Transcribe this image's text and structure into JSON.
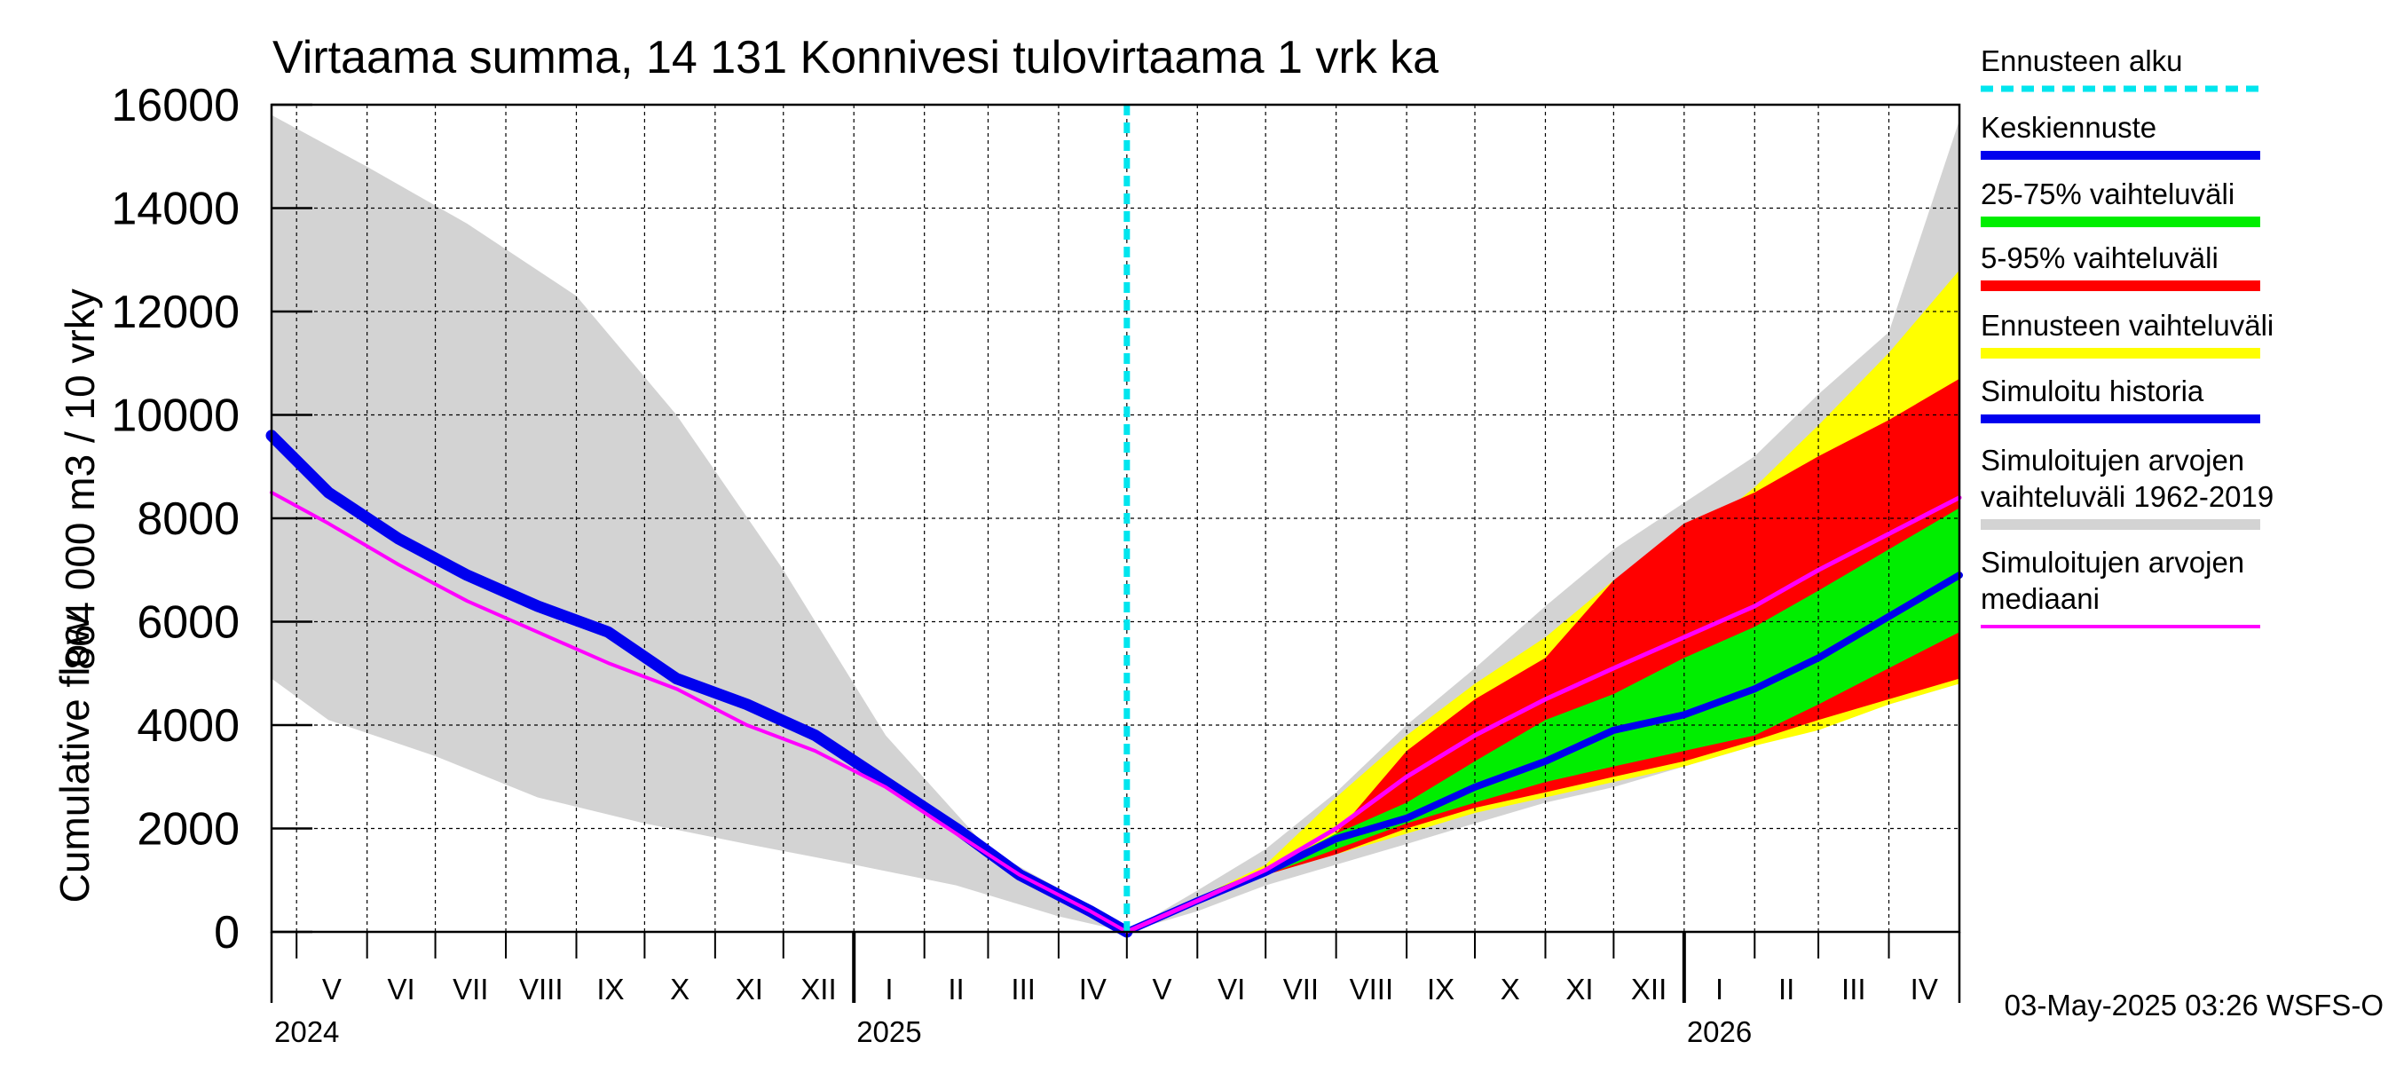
{
  "chart_data": {
    "type": "area",
    "title": "Virtaama summa, 14 131 Konnivesi tulovirtaama 1 vrk ka",
    "ylabel_line1": "864 000 m3 / 10 vrky",
    "ylabel_line2": "Cumulative flow",
    "footer": "03-May-2025 03:26 WSFS-O",
    "ylim": [
      0,
      16000
    ],
    "yticks": [
      0,
      2000,
      4000,
      6000,
      8000,
      10000,
      12000,
      14000,
      16000
    ],
    "xlim": [
      "2024-04-20",
      "2026-05-02"
    ],
    "months": [
      {
        "label": "V",
        "start": "2024-05-01"
      },
      {
        "label": "VI",
        "start": "2024-06-01"
      },
      {
        "label": "VII",
        "start": "2024-07-01"
      },
      {
        "label": "VIII",
        "start": "2024-08-01"
      },
      {
        "label": "IX",
        "start": "2024-09-01"
      },
      {
        "label": "X",
        "start": "2024-10-01"
      },
      {
        "label": "XI",
        "start": "2024-11-01"
      },
      {
        "label": "XII",
        "start": "2024-12-01"
      },
      {
        "label": "I",
        "start": "2025-01-01"
      },
      {
        "label": "II",
        "start": "2025-02-01"
      },
      {
        "label": "III",
        "start": "2025-03-01"
      },
      {
        "label": "IV",
        "start": "2025-04-01"
      },
      {
        "label": "V",
        "start": "2025-05-01"
      },
      {
        "label": "VI",
        "start": "2025-06-01"
      },
      {
        "label": "VII",
        "start": "2025-07-01"
      },
      {
        "label": "VIII",
        "start": "2025-08-01"
      },
      {
        "label": "IX",
        "start": "2025-09-01"
      },
      {
        "label": "X",
        "start": "2025-10-01"
      },
      {
        "label": "XI",
        "start": "2025-11-01"
      },
      {
        "label": "XII",
        "start": "2025-12-01"
      },
      {
        "label": "I",
        "start": "2026-01-01"
      },
      {
        "label": "II",
        "start": "2026-02-01"
      },
      {
        "label": "III",
        "start": "2026-03-01"
      },
      {
        "label": "IV",
        "start": "2026-04-01"
      }
    ],
    "years": [
      {
        "label": "2024",
        "date": "2024-04-20"
      },
      {
        "label": "2025",
        "date": "2025-01-01"
      },
      {
        "label": "2026",
        "date": "2026-01-01"
      }
    ],
    "forecast_start": "2025-05-01",
    "legend": [
      {
        "label": "Ennusteen alku",
        "color": "#00e5ee",
        "style": "dashed"
      },
      {
        "label": "Keskiennuste",
        "color": "#0000ee",
        "style": "solid"
      },
      {
        "label": "25-75% vaihteluväli",
        "color": "#00ee00",
        "style": "solid"
      },
      {
        "label": "5-95% vaihteluväli",
        "color": "#ff0000",
        "style": "solid"
      },
      {
        "label": "Ennusteen vaihteluväli",
        "color": "#ffff00",
        "style": "solid"
      },
      {
        "label": "Simuloitu historia",
        "color": "#0000ee",
        "style": "solid"
      },
      {
        "label": "Simuloitujen arvojen vaihteluväli 1962-2019",
        "lines": [
          "Simuloitujen arvojen",
          "vaihteluväli 1962-2019"
        ],
        "color": "#d3d3d3",
        "style": "solid"
      },
      {
        "label": "Simuloitujen arvojen mediaani",
        "lines": [
          "Simuloitujen arvojen",
          "mediaani"
        ],
        "color": "#ff00ff",
        "style": "solid"
      }
    ],
    "series": {
      "hist_range_upper": {
        "x": [
          "2024-04-20",
          "2024-06-01",
          "2024-07-15",
          "2024-09-01",
          "2024-10-15",
          "2024-12-01",
          "2025-01-15",
          "2025-03-01",
          "2025-04-15",
          "2025-05-01"
        ],
        "y": [
          15800,
          14800,
          13700,
          12300,
          10000,
          7000,
          3800,
          1600,
          500,
          0
        ]
      },
      "hist_range_lower": {
        "x": [
          "2024-04-20",
          "2024-05-15",
          "2024-07-01",
          "2024-08-15",
          "2024-10-01",
          "2024-11-15",
          "2025-01-01",
          "2025-02-15",
          "2025-04-01",
          "2025-05-01"
        ],
        "y": [
          4900,
          4100,
          3400,
          2600,
          2100,
          1700,
          1300,
          900,
          300,
          0
        ]
      },
      "hist_median": {
        "x": [
          "2024-04-20",
          "2024-05-15",
          "2024-06-15",
          "2024-07-15",
          "2024-08-15",
          "2024-09-15",
          "2024-10-15",
          "2024-11-15",
          "2024-12-15",
          "2025-01-15",
          "2025-02-15",
          "2025-03-15",
          "2025-04-15",
          "2025-05-01"
        ],
        "y": [
          8500,
          7900,
          7100,
          6400,
          5800,
          5200,
          4700,
          4000,
          3500,
          2800,
          1900,
          1100,
          400,
          0
        ]
      },
      "simulated_history": {
        "x": [
          "2024-04-20",
          "2024-05-15",
          "2024-06-15",
          "2024-07-15",
          "2024-08-15",
          "2024-09-15",
          "2024-10-15",
          "2024-11-15",
          "2024-12-15",
          "2025-01-15",
          "2025-02-15",
          "2025-03-15",
          "2025-04-15",
          "2025-05-01"
        ],
        "y": [
          9600,
          8500,
          7600,
          6900,
          6300,
          5800,
          4900,
          4400,
          3800,
          2900,
          2000,
          1100,
          400,
          0
        ]
      },
      "future_range_upper": {
        "x": [
          "2025-05-01",
          "2025-06-01",
          "2025-07-01",
          "2025-08-01",
          "2025-09-01",
          "2025-10-01",
          "2025-11-01",
          "2025-12-01",
          "2026-01-01",
          "2026-02-01",
          "2026-03-01",
          "2026-04-01",
          "2026-05-02"
        ],
        "y": [
          0,
          800,
          1600,
          2700,
          4000,
          5100,
          6300,
          7400,
          8300,
          9200,
          10400,
          11600,
          15700
        ]
      },
      "future_range_lower": {
        "x": [
          "2025-05-01",
          "2025-06-01",
          "2025-07-01",
          "2025-08-01",
          "2025-09-01",
          "2025-10-01",
          "2025-11-01",
          "2025-12-01",
          "2026-01-01",
          "2026-02-01",
          "2026-03-01",
          "2026-04-01",
          "2026-05-02"
        ],
        "y": [
          0,
          400,
          900,
          1300,
          1700,
          2100,
          2500,
          2800,
          3200,
          3600,
          4000,
          4400,
          4800
        ]
      },
      "forecast_range_upper": {
        "x": [
          "2025-05-01",
          "2025-06-01",
          "2025-07-01",
          "2025-08-01",
          "2025-09-01",
          "2025-10-01",
          "2025-11-01",
          "2025-12-01",
          "2026-01-01",
          "2026-02-01",
          "2026-03-01",
          "2026-04-01",
          "2026-05-02"
        ],
        "y": [
          0,
          650,
          1300,
          2600,
          3800,
          4800,
          5700,
          6800,
          7500,
          8600,
          9800,
          11200,
          12800
        ]
      },
      "forecast_range_lower": {
        "x": [
          "2025-05-01",
          "2025-06-01",
          "2025-07-01",
          "2025-08-01",
          "2025-09-01",
          "2025-10-01",
          "2025-11-01",
          "2025-12-01",
          "2026-01-01",
          "2026-02-01",
          "2026-03-01",
          "2026-04-01",
          "2026-05-02"
        ],
        "y": [
          0,
          550,
          1100,
          1500,
          1900,
          2300,
          2600,
          2900,
          3200,
          3600,
          3900,
          4400,
          4800
        ]
      },
      "p5_95_upper": {
        "x": [
          "2025-05-01",
          "2025-06-01",
          "2025-07-01",
          "2025-08-01",
          "2025-09-01",
          "2025-10-01",
          "2025-11-01",
          "2025-12-01",
          "2026-01-01",
          "2026-02-01",
          "2026-03-01",
          "2026-04-01",
          "2026-05-02"
        ],
        "y": [
          0,
          650,
          1200,
          1900,
          3500,
          4500,
          5300,
          6800,
          7900,
          8500,
          9200,
          9900,
          10700
        ]
      },
      "p5_95_lower": {
        "x": [
          "2025-05-01",
          "2025-06-01",
          "2025-07-01",
          "2025-08-01",
          "2025-09-01",
          "2025-10-01",
          "2025-11-01",
          "2025-12-01",
          "2026-01-01",
          "2026-02-01",
          "2026-03-01",
          "2026-04-01",
          "2026-05-02"
        ],
        "y": [
          0,
          550,
          1100,
          1500,
          2000,
          2400,
          2700,
          3000,
          3300,
          3700,
          4100,
          4500,
          4900
        ]
      },
      "p25_75_upper": {
        "x": [
          "2025-05-01",
          "2025-06-01",
          "2025-07-01",
          "2025-08-01",
          "2025-09-01",
          "2025-10-01",
          "2025-11-01",
          "2025-12-01",
          "2026-01-01",
          "2026-02-01",
          "2026-03-01",
          "2026-04-01",
          "2026-05-02"
        ],
        "y": [
          0,
          600,
          1200,
          1900,
          2500,
          3300,
          4100,
          4600,
          5300,
          5900,
          6600,
          7400,
          8200
        ]
      },
      "p25_75_lower": {
        "x": [
          "2025-05-01",
          "2025-06-01",
          "2025-07-01",
          "2025-08-01",
          "2025-09-01",
          "2025-10-01",
          "2025-11-01",
          "2025-12-01",
          "2026-01-01",
          "2026-02-01",
          "2026-03-01",
          "2026-04-01",
          "2026-05-02"
        ],
        "y": [
          0,
          550,
          1100,
          1600,
          2100,
          2500,
          2900,
          3200,
          3500,
          3800,
          4400,
          5100,
          5800
        ]
      },
      "forecast_mean": {
        "x": [
          "2025-05-01",
          "2025-06-01",
          "2025-07-01",
          "2025-08-01",
          "2025-09-01",
          "2025-10-01",
          "2025-11-01",
          "2025-12-01",
          "2026-01-01",
          "2026-02-01",
          "2026-03-01",
          "2026-04-01",
          "2026-05-02"
        ],
        "y": [
          0,
          600,
          1150,
          1800,
          2200,
          2800,
          3300,
          3900,
          4200,
          4700,
          5300,
          6100,
          6900
        ]
      },
      "future_median": {
        "x": [
          "2025-05-01",
          "2025-06-01",
          "2025-07-01",
          "2025-08-01",
          "2025-09-01",
          "2025-10-01",
          "2025-11-01",
          "2025-12-01",
          "2026-01-01",
          "2026-02-01",
          "2026-03-01",
          "2026-04-01",
          "2026-05-02"
        ],
        "y": [
          0,
          600,
          1200,
          2000,
          3000,
          3800,
          4500,
          5100,
          5700,
          6300,
          7000,
          7700,
          8400
        ]
      }
    },
    "grid": true,
    "legend_position": "right"
  }
}
